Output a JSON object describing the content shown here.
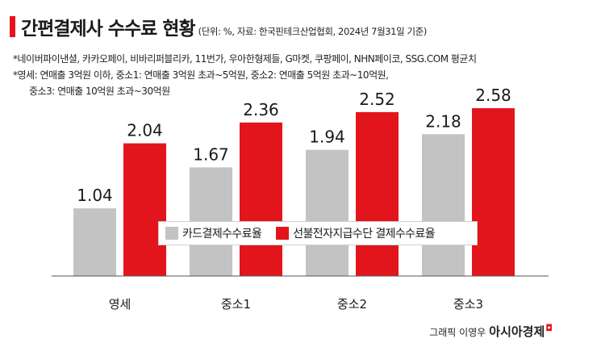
{
  "header": {
    "title": "간편결제사 수수료 현황",
    "source": "(단위: %, 자료: 한국핀테크산업협회, 2024년 7월31일 기준)",
    "note1": "*네이버파이낸셜, 카카오페이, 비바리퍼블리카, 11번가, 우아한형제들, G마켓, 쿠팡페이, NHN페이코, SSG.COM 평균치",
    "note2a": "*영세: 연매출 3억원 이하, 중소1: 연매출 3억원 초과~5억원, 중소2: 연매출 5억원 초과~10억원,",
    "note2b": "중소3: 연매출 10억원 초과~30억원"
  },
  "credit": {
    "by": "그래픽 이영우",
    "brand": "아시아경제"
  },
  "colors": {
    "card": "#c3c3c3",
    "prepaid": "#e3151c"
  },
  "chart_data": {
    "type": "bar",
    "categories": [
      "영세",
      "중소1",
      "중소2",
      "중소3"
    ],
    "series": [
      {
        "name": "카드결제수수료율",
        "values": [
          1.04,
          1.67,
          1.94,
          2.18
        ]
      },
      {
        "name": "선불전자지급수단 결제수수료율",
        "values": [
          2.04,
          2.36,
          2.52,
          2.58
        ]
      }
    ],
    "data_labels": true,
    "grid": false,
    "legend": "center"
  }
}
